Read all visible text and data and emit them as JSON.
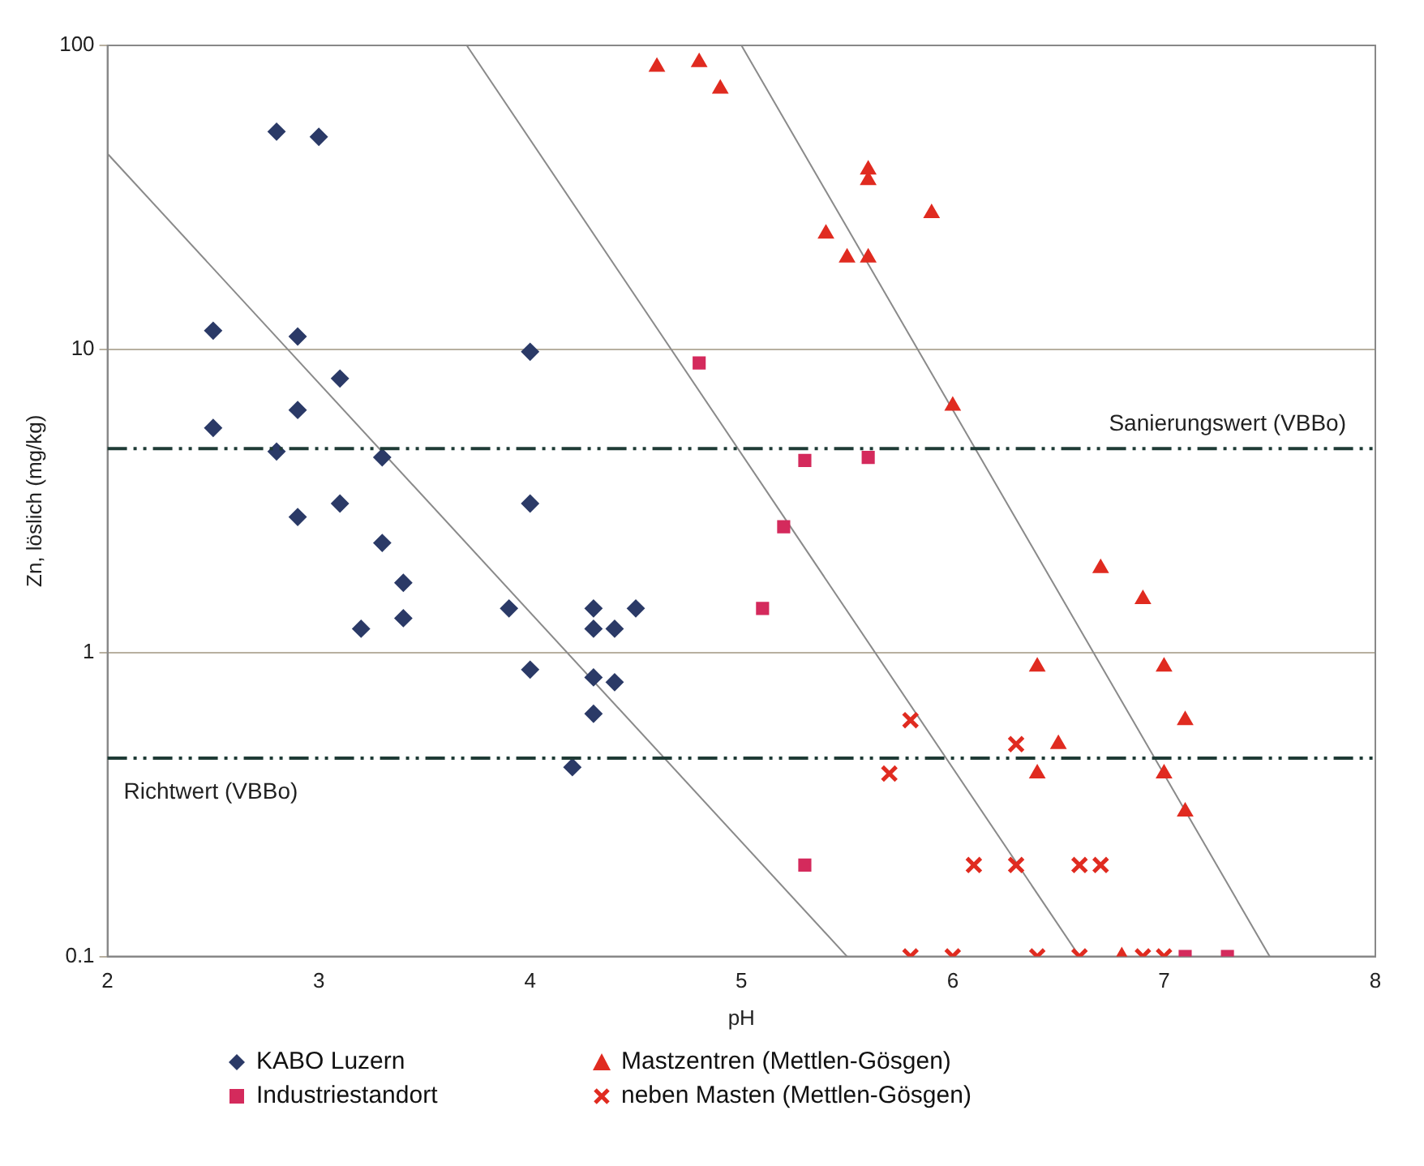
{
  "chart_data": {
    "type": "scatter",
    "xlabel": "pH",
    "ylabel": "Zn, löslich (mg/kg)",
    "xlim": [
      2,
      8
    ],
    "xticks": [
      2,
      3,
      4,
      5,
      6,
      7,
      8
    ],
    "ylim": [
      0.1,
      100
    ],
    "yticks": [
      0.1,
      1,
      10,
      100
    ],
    "log": "y",
    "grid": "y",
    "legend": "bottom",
    "series": [
      {
        "name": "KABO Luzern",
        "color": "#2b3a67",
        "marker": "diamond",
        "x": [
          2.5,
          2.5,
          2.8,
          2.8,
          2.9,
          2.9,
          2.9,
          3.0,
          3.1,
          3.1,
          3.2,
          3.3,
          3.3,
          3.4,
          3.4,
          3.9,
          4.0,
          4.0,
          4.0,
          4.2,
          4.3,
          4.3,
          4.3,
          4.3,
          4.4,
          4.4,
          4.5
        ],
        "values": [
          11.5,
          5.5,
          52,
          4.6,
          11,
          6.3,
          2.8,
          50,
          8,
          3.1,
          1.2,
          4.4,
          2.3,
          1.7,
          1.3,
          1.4,
          9.8,
          3.1,
          0.88,
          0.42,
          1.4,
          1.2,
          0.83,
          0.63,
          1.2,
          0.8,
          1.4
        ]
      },
      {
        "name": "Industriestandort",
        "color": "#d42a5c",
        "marker": "square",
        "x": [
          4.8,
          5.3,
          5.6,
          5.2,
          5.1,
          5.3,
          7.1,
          7.3
        ],
        "values": [
          9,
          4.3,
          4.4,
          2.6,
          1.4,
          0.2,
          0.1,
          0.1
        ]
      },
      {
        "name": "Mastzentren (Mettlen-Gösgen)",
        "color": "#e02b20",
        "marker": "triangle",
        "x": [
          4.6,
          4.8,
          4.9,
          5.4,
          5.5,
          5.6,
          5.6,
          5.6,
          5.9,
          6.0,
          6.7,
          6.9,
          6.4,
          7.0,
          6.5,
          7.1,
          6.4,
          7.0,
          7.1,
          6.8
        ],
        "values": [
          85,
          88,
          72,
          24,
          20,
          20,
          36,
          39,
          28,
          6.5,
          1.9,
          1.5,
          0.9,
          0.9,
          0.5,
          0.6,
          0.4,
          0.4,
          0.3,
          0.1
        ]
      },
      {
        "name": "neben Masten (Mettlen-Gösgen)",
        "color": "#e02b20",
        "marker": "cross",
        "x": [
          5.8,
          6.3,
          5.7,
          6.1,
          6.3,
          6.6,
          6.7,
          5.8,
          6.0,
          6.4,
          6.6,
          6.9,
          7.0
        ],
        "values": [
          0.6,
          0.5,
          0.4,
          0.2,
          0.2,
          0.2,
          0.2,
          0.1,
          0.1,
          0.1,
          0.1,
          0.1,
          0.1
        ]
      },
      {
        "type": "line",
        "color": "#8a8a8a",
        "marker": "none",
        "x": [
          2.0,
          5.5
        ],
        "values": [
          44,
          0.1
        ]
      },
      {
        "type": "line",
        "color": "#8a8a8a",
        "marker": "none",
        "x": [
          3.7,
          6.6
        ],
        "values": [
          100,
          0.1
        ]
      },
      {
        "type": "line",
        "color": "#8a8a8a",
        "marker": "none",
        "x": [
          5.0,
          7.5
        ],
        "values": [
          100,
          0.1
        ]
      }
    ],
    "ref_lines": [
      {
        "axis": "y",
        "value": 4.7,
        "label": "Sanierungswert (VBBo)",
        "color": "#1f3b36",
        "line_style": "dashed"
      },
      {
        "axis": "y",
        "value": 0.45,
        "label": "Richtwert (VBBo)",
        "color": "#1f3b36",
        "line_style": "dashed"
      }
    ]
  }
}
